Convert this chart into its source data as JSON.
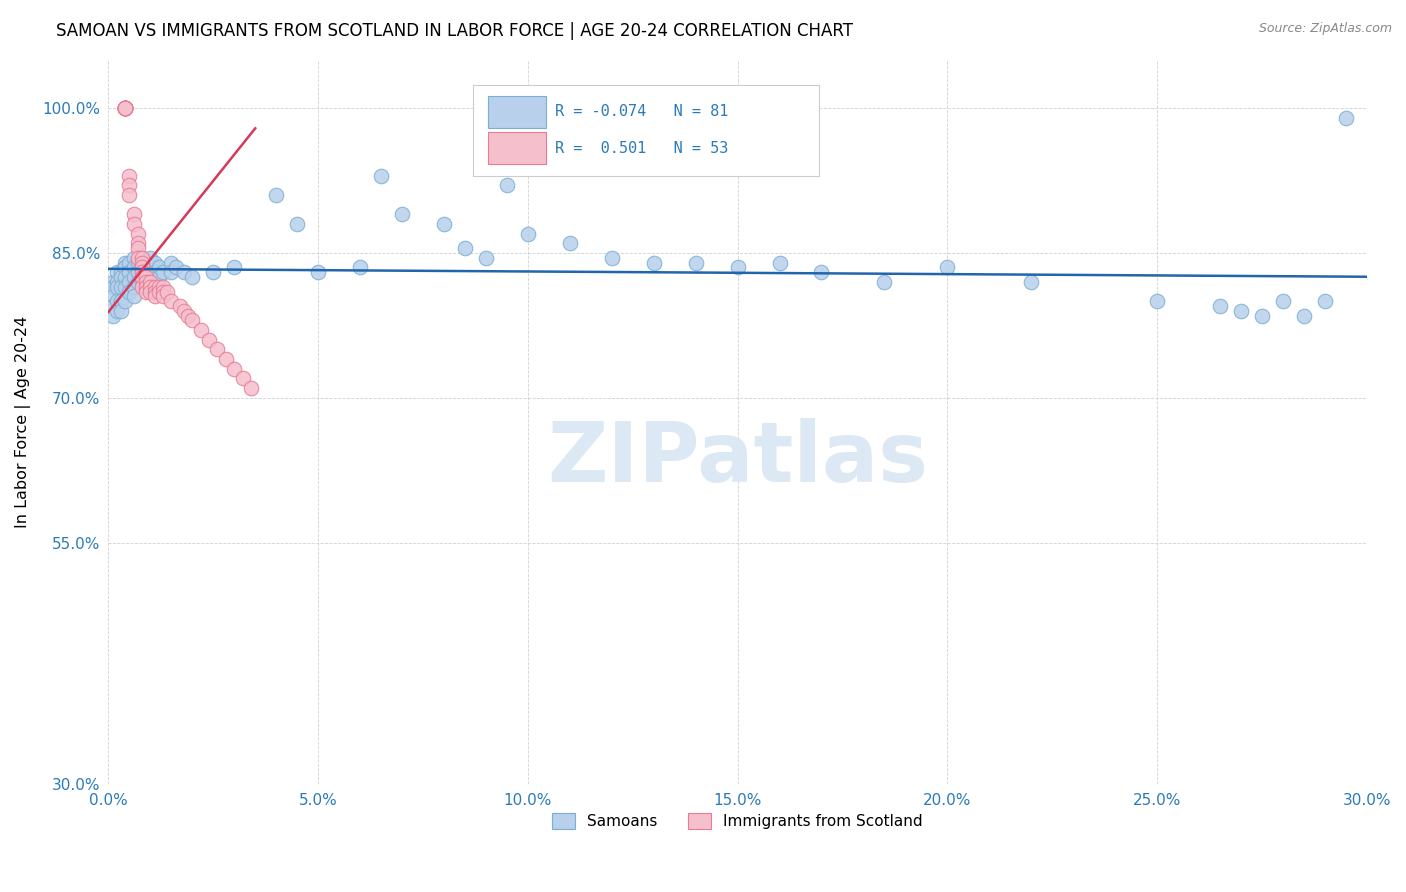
{
  "title": "SAMOAN VS IMMIGRANTS FROM SCOTLAND IN LABOR FORCE | AGE 20-24 CORRELATION CHART",
  "source": "Source: ZipAtlas.com",
  "ylabel": "In Labor Force | Age 20-24",
  "xlim": [
    0.0,
    0.3
  ],
  "ylim": [
    0.3,
    1.05
  ],
  "xticks": [
    0.0,
    0.05,
    0.1,
    0.15,
    0.2,
    0.25,
    0.3
  ],
  "xticklabels": [
    "0.0%",
    "5.0%",
    "10.0%",
    "15.0%",
    "20.0%",
    "25.0%",
    "30.0%"
  ],
  "yticks": [
    0.3,
    0.55,
    0.7,
    0.85,
    1.0
  ],
  "yticklabels": [
    "30.0%",
    "55.0%",
    "70.0%",
    "85.0%",
    "100.0%"
  ],
  "blue_R": -0.074,
  "blue_N": 81,
  "pink_R": 0.501,
  "pink_N": 53,
  "blue_color": "#b8d0eb",
  "blue_edge_color": "#7aafd4",
  "pink_color": "#f5bfcc",
  "pink_edge_color": "#e87a96",
  "blue_line_color": "#2166ac",
  "pink_line_color": "#d63a58",
  "watermark": "ZIPatlas",
  "watermark_color": "#dce8f4",
  "legend_label_blue": "Samoans",
  "legend_label_pink": "Immigrants from Scotland",
  "blue_scatter_x": [
    0.001,
    0.001,
    0.001,
    0.001,
    0.001,
    0.002,
    0.002,
    0.002,
    0.002,
    0.002,
    0.003,
    0.003,
    0.003,
    0.003,
    0.003,
    0.004,
    0.004,
    0.004,
    0.004,
    0.004,
    0.005,
    0.005,
    0.005,
    0.005,
    0.006,
    0.006,
    0.006,
    0.006,
    0.006,
    0.007,
    0.007,
    0.007,
    0.008,
    0.008,
    0.008,
    0.009,
    0.009,
    0.01,
    0.01,
    0.01,
    0.011,
    0.011,
    0.012,
    0.012,
    0.013,
    0.015,
    0.015,
    0.016,
    0.018,
    0.02,
    0.025,
    0.03,
    0.04,
    0.045,
    0.05,
    0.06,
    0.065,
    0.07,
    0.08,
    0.085,
    0.09,
    0.095,
    0.1,
    0.11,
    0.12,
    0.13,
    0.14,
    0.15,
    0.16,
    0.17,
    0.185,
    0.2,
    0.22,
    0.25,
    0.265,
    0.27,
    0.275,
    0.28,
    0.285,
    0.29,
    0.295
  ],
  "blue_scatter_y": [
    0.82,
    0.815,
    0.805,
    0.795,
    0.785,
    0.83,
    0.82,
    0.815,
    0.8,
    0.79,
    0.83,
    0.825,
    0.815,
    0.8,
    0.79,
    0.84,
    0.835,
    0.825,
    0.815,
    0.8,
    0.84,
    0.83,
    0.82,
    0.81,
    0.845,
    0.835,
    0.825,
    0.815,
    0.805,
    0.84,
    0.83,
    0.82,
    0.845,
    0.835,
    0.82,
    0.84,
    0.83,
    0.845,
    0.835,
    0.82,
    0.84,
    0.83,
    0.835,
    0.825,
    0.83,
    0.84,
    0.83,
    0.835,
    0.83,
    0.825,
    0.83,
    0.835,
    0.91,
    0.88,
    0.83,
    0.835,
    0.93,
    0.89,
    0.88,
    0.855,
    0.845,
    0.92,
    0.87,
    0.86,
    0.845,
    0.84,
    0.84,
    0.835,
    0.84,
    0.83,
    0.82,
    0.835,
    0.82,
    0.8,
    0.795,
    0.79,
    0.785,
    0.8,
    0.785,
    0.8,
    0.99
  ],
  "pink_scatter_x": [
    0.004,
    0.004,
    0.004,
    0.004,
    0.004,
    0.004,
    0.004,
    0.004,
    0.004,
    0.004,
    0.005,
    0.005,
    0.005,
    0.006,
    0.006,
    0.007,
    0.007,
    0.007,
    0.007,
    0.008,
    0.008,
    0.008,
    0.008,
    0.008,
    0.008,
    0.009,
    0.009,
    0.009,
    0.009,
    0.01,
    0.01,
    0.01,
    0.011,
    0.011,
    0.011,
    0.012,
    0.012,
    0.013,
    0.013,
    0.013,
    0.014,
    0.015,
    0.017,
    0.018,
    0.019,
    0.02,
    0.022,
    0.024,
    0.026,
    0.028,
    0.03,
    0.032,
    0.034
  ],
  "pink_scatter_y": [
    1.0,
    1.0,
    1.0,
    1.0,
    1.0,
    1.0,
    1.0,
    1.0,
    1.0,
    1.0,
    0.93,
    0.92,
    0.91,
    0.89,
    0.88,
    0.87,
    0.86,
    0.855,
    0.845,
    0.845,
    0.84,
    0.835,
    0.83,
    0.825,
    0.815,
    0.825,
    0.82,
    0.815,
    0.81,
    0.82,
    0.815,
    0.81,
    0.815,
    0.81,
    0.805,
    0.815,
    0.81,
    0.815,
    0.81,
    0.805,
    0.81,
    0.8,
    0.795,
    0.79,
    0.785,
    0.78,
    0.77,
    0.76,
    0.75,
    0.74,
    0.73,
    0.72,
    0.71
  ]
}
